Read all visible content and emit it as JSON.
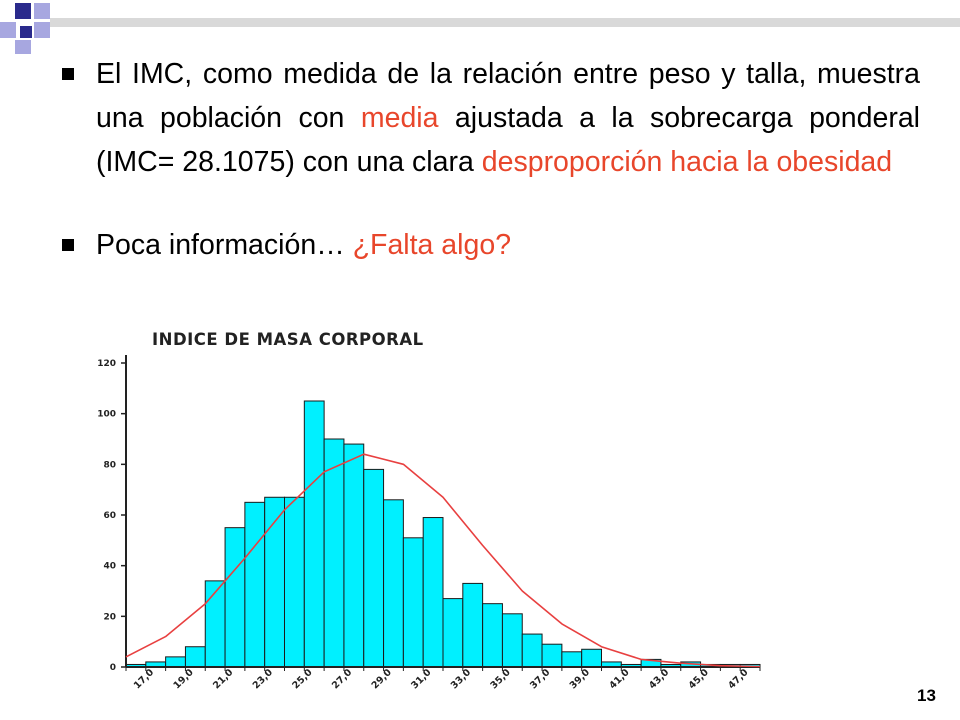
{
  "slide": {
    "bullets": [
      {
        "p1": "El IMC, como medida de la relación entre peso y talla, muestra una población con ",
        "h1": "media",
        "p2": " ajustada a la sobrecarga ponderal (IMC= 28.1075) con una clara ",
        "h2": "desproporción hacia la obesidad"
      },
      {
        "p1": "Poca información… ",
        "h1": "¿Falta algo?"
      }
    ],
    "page_number": "13"
  },
  "colors": {
    "accent_text": "#e8462b",
    "bar_fill": "#00f0ff",
    "curve": "#e84040",
    "deco_navy": "#2a2a8c",
    "deco_lavender": "#a7a7e0"
  },
  "chart_data": {
    "type": "bar",
    "title": "INDICE DE MASA CORPORAL",
    "xlabel": "",
    "ylabel": "",
    "x_bin_start": 16,
    "x_bin_width": 1,
    "values": [
      1,
      2,
      4,
      8,
      34,
      55,
      65,
      67,
      67,
      105,
      90,
      88,
      78,
      66,
      51,
      59,
      27,
      33,
      25,
      21,
      13,
      9,
      6,
      7,
      2,
      1,
      3,
      1,
      2,
      1,
      1,
      1
    ],
    "x_tick_labels": [
      "17,0",
      "19,0",
      "21,0",
      "23,0",
      "25,0",
      "27,0",
      "29,0",
      "31,0",
      "33,0",
      "35,0",
      "37,0",
      "39,0",
      "41,0",
      "43,0",
      "45,0",
      "47,0"
    ],
    "x_ticks": [
      17,
      19,
      21,
      23,
      25,
      27,
      29,
      31,
      33,
      35,
      37,
      39,
      41,
      43,
      45,
      47
    ],
    "y_ticks": [
      0,
      20,
      40,
      60,
      80,
      100,
      120
    ],
    "ylim": [
      0,
      120
    ],
    "xlim": [
      16,
      48
    ],
    "curve": {
      "type": "normal-fit",
      "x": [
        16,
        18,
        20,
        22,
        24,
        26,
        28,
        30,
        32,
        34,
        36,
        38,
        40,
        42,
        44,
        46,
        48
      ],
      "y": [
        4,
        12,
        25,
        43,
        62,
        77,
        84,
        80,
        67,
        48,
        30,
        17,
        8,
        3,
        1.5,
        0.5,
        0.2
      ]
    },
    "grid": false,
    "legend": "none"
  }
}
